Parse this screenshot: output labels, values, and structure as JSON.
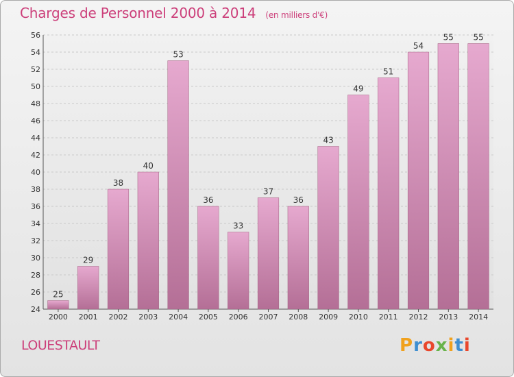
{
  "header": {
    "title": "Charges de Personnel 2000 à 2014",
    "subtitle": "(en milliers d'€)"
  },
  "footer": {
    "commune": "LOUESTAULT",
    "logo_text": "Proxiti"
  },
  "colors": {
    "title": "#cc3f7a",
    "bar_light": "#e6a9cf",
    "bar_dark": "#b46f96"
  },
  "chart_data": {
    "type": "bar",
    "categories": [
      "2000",
      "2001",
      "2002",
      "2003",
      "2004",
      "2005",
      "2006",
      "2007",
      "2008",
      "2009",
      "2010",
      "2011",
      "2012",
      "2013",
      "2014"
    ],
    "values": [
      25,
      29,
      38,
      40,
      53,
      36,
      33,
      37,
      36,
      43,
      49,
      51,
      54,
      55,
      55
    ],
    "ylim": [
      24,
      56
    ],
    "yticks": [
      24,
      26,
      28,
      30,
      32,
      34,
      36,
      38,
      40,
      42,
      44,
      46,
      48,
      50,
      52,
      54,
      56
    ],
    "grid": true,
    "xlabel": "",
    "ylabel": ""
  }
}
